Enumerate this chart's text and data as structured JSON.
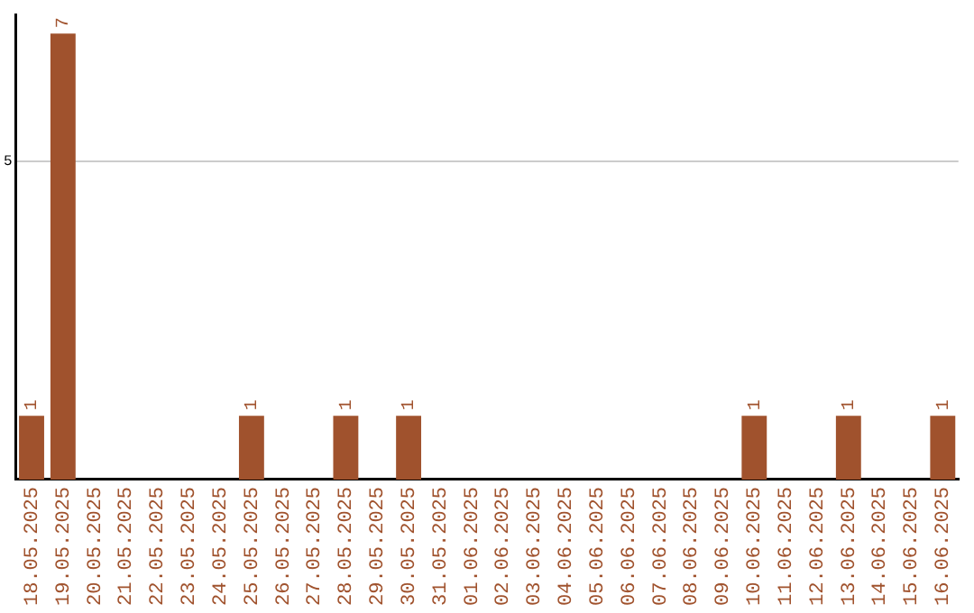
{
  "chart_data": {
    "type": "bar",
    "categories": [
      "18.05.2025",
      "19.05.2025",
      "20.05.2025",
      "21.05.2025",
      "22.05.2025",
      "23.05.2025",
      "24.05.2025",
      "25.05.2025",
      "26.05.2025",
      "27.05.2025",
      "28.05.2025",
      "29.05.2025",
      "30.05.2025",
      "31.05.2025",
      "01.06.2025",
      "02.06.2025",
      "03.06.2025",
      "04.06.2025",
      "05.06.2025",
      "06.06.2025",
      "07.06.2025",
      "08.06.2025",
      "09.06.2025",
      "10.06.2025",
      "11.06.2025",
      "12.06.2025",
      "13.06.2025",
      "14.06.2025",
      "15.06.2025",
      "16.06.2025"
    ],
    "values": [
      1,
      7,
      0,
      0,
      0,
      0,
      0,
      1,
      0,
      0,
      1,
      0,
      1,
      0,
      0,
      0,
      0,
      0,
      0,
      0,
      0,
      0,
      0,
      1,
      0,
      0,
      1,
      0,
      0,
      1
    ],
    "value_labels": [
      "1",
      "7",
      null,
      null,
      null,
      null,
      null,
      "1",
      null,
      null,
      "1",
      null,
      "1",
      null,
      null,
      null,
      null,
      null,
      null,
      null,
      null,
      null,
      null,
      "1",
      null,
      null,
      "1",
      null,
      null,
      "1"
    ],
    "color": "#a0522d",
    "ylim": [
      0,
      7.3
    ],
    "yticks": [
      5
    ],
    "grid": "y",
    "legend": false
  }
}
